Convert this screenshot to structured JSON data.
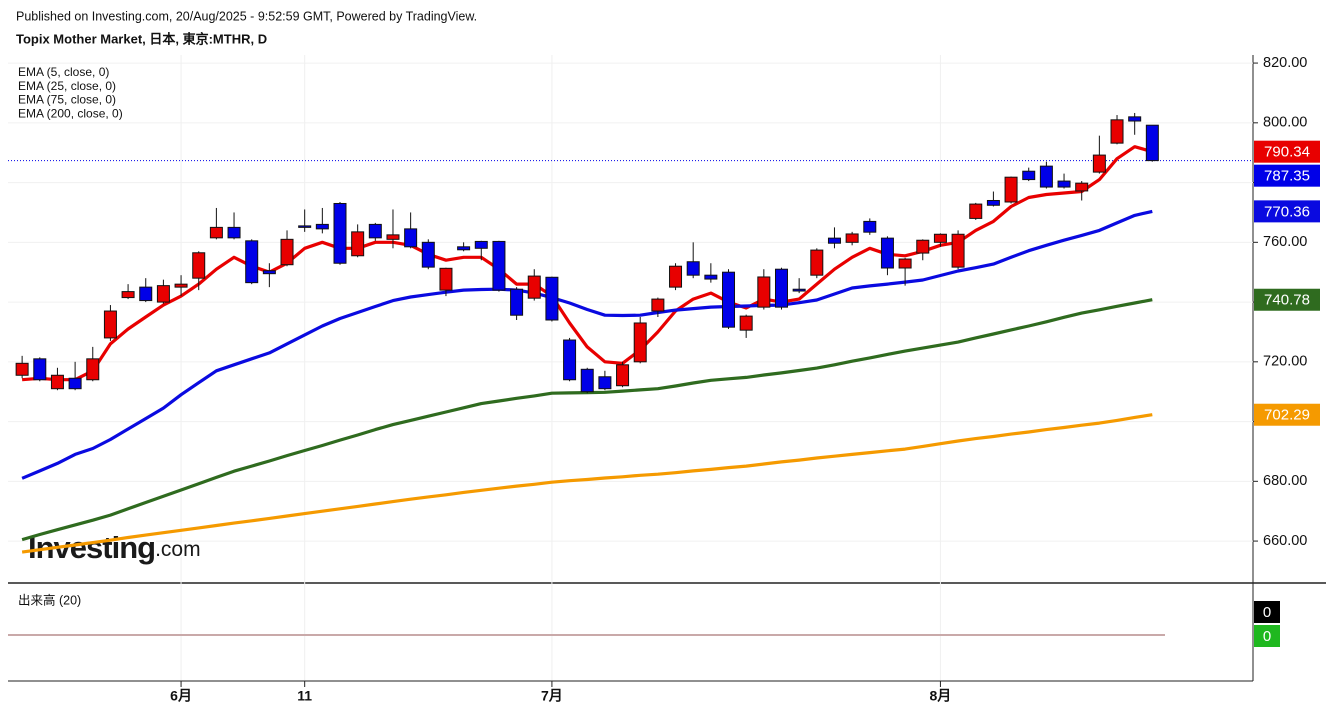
{
  "chart_data": {
    "type": "candlestick",
    "published": "Published on Investing.com, 20/Aug/2025 - 9:52:59 GMT, Powered by TradingView.",
    "title": "Topix Mother Market, 日本, 東京:MTHR, D",
    "watermark": {
      "brand": "Investing",
      "suffix": ".com"
    },
    "categories": [
      null,
      null,
      null,
      null,
      null,
      null,
      null,
      null,
      null,
      "6月",
      null,
      null,
      null,
      null,
      null,
      null,
      "11",
      null,
      null,
      null,
      null,
      null,
      null,
      null,
      null,
      null,
      null,
      null,
      null,
      null,
      "7月",
      null,
      null,
      null,
      null,
      null,
      null,
      null,
      null,
      null,
      null,
      null,
      null,
      null,
      null,
      null,
      null,
      null,
      null,
      null,
      null,
      null,
      "8月",
      null,
      null,
      null,
      null,
      null,
      null,
      null,
      null,
      null,
      null,
      null,
      null
    ],
    "xlim": [
      -0.8,
      69.7
    ],
    "open": [
      715.5,
      721,
      711,
      714.5,
      714,
      728,
      741.5,
      745,
      740,
      745,
      748,
      761.5,
      765,
      760.5,
      750.5,
      752.5,
      765.5,
      766,
      773,
      755.5,
      766,
      761,
      764.5,
      760,
      744,
      758.5,
      760.3,
      760.3,
      744.3,
      741.3,
      748.3,
      727.3,
      717.5,
      715,
      712,
      720,
      737,
      745,
      753.5,
      749,
      750,
      730.6,
      738.3,
      751,
      744.3,
      749,
      761.4,
      760,
      767,
      761.4,
      751.4,
      756.4,
      760,
      751.7,
      768,
      774,
      773.5,
      783.8,
      785.5,
      780.5,
      777.2,
      783.5,
      793.2,
      802,
      799.2
    ],
    "high": [
      722,
      721.5,
      718,
      720,
      725,
      739,
      746,
      748,
      747.5,
      749,
      757,
      771.5,
      770,
      761,
      753,
      764,
      771,
      771.5,
      773.5,
      766,
      766.5,
      771,
      770,
      761,
      751.5,
      760,
      760.5,
      760.5,
      745,
      751,
      748.5,
      728,
      718,
      717,
      720,
      735,
      741.5,
      753,
      760,
      753,
      751,
      735.8,
      751,
      751.5,
      748,
      758,
      765,
      763.5,
      768,
      762,
      754.8,
      761,
      763,
      764,
      773.2,
      777,
      782,
      785,
      787,
      783,
      780.5,
      795.7,
      802.6,
      803.3,
      799.2
    ],
    "low": [
      714.5,
      713.5,
      710.5,
      710.5,
      713.5,
      727,
      741,
      740,
      739.5,
      742,
      744,
      761,
      761,
      746,
      745,
      752,
      763.5,
      763,
      752.5,
      755,
      760.5,
      758,
      758,
      751,
      742,
      757,
      754,
      743.5,
      734,
      740.5,
      733.5,
      713.5,
      709.5,
      710.5,
      711.5,
      719.5,
      735,
      744,
      748,
      746.5,
      731,
      728,
      737.5,
      737.5,
      743,
      748,
      758,
      759,
      762.5,
      749,
      745.5,
      754,
      758.5,
      751,
      767.5,
      772,
      773,
      780.5,
      778,
      778,
      774,
      783,
      792.8,
      796,
      787
    ],
    "close": [
      719.5,
      714,
      715.5,
      711,
      721,
      737,
      743.5,
      740.5,
      745.5,
      746,
      756.5,
      765,
      761.5,
      746.5,
      749.5,
      761,
      765,
      764.5,
      753,
      763.5,
      761.5,
      762.5,
      758.5,
      751.7,
      751.3,
      757.5,
      758,
      744,
      735.6,
      748.7,
      734,
      714,
      710,
      711,
      719,
      733,
      741,
      752,
      749,
      747.7,
      731.6,
      735.3,
      748.4,
      738.3,
      743.7,
      757.4,
      759.7,
      762.8,
      763.4,
      751.4,
      754.4,
      760.7,
      762.7,
      762.7,
      772.8,
      772.4,
      781.8,
      781,
      778.5,
      778.5,
      779.8,
      789.2,
      801,
      800.6,
      787.35
    ],
    "up_color": "#e80000",
    "down_color": "#0000e8",
    "series": [
      {
        "name": "EMA (5, close, 0)",
        "color": "#e80000",
        "values": [
          714,
          714.5,
          714,
          714,
          717,
          726,
          731,
          735,
          739,
          742,
          746,
          751,
          755,
          752,
          750,
          753,
          758,
          760,
          758,
          758,
          760,
          760,
          759,
          756,
          754,
          755,
          755,
          751,
          746,
          746,
          742,
          733,
          725,
          720,
          719.5,
          724,
          730,
          737,
          741,
          743,
          740,
          738,
          741,
          740,
          741,
          746,
          751,
          755,
          758,
          756,
          755.5,
          757,
          759,
          760,
          764,
          767,
          772,
          775,
          776,
          776.5,
          777,
          781,
          788,
          792,
          790.34
        ]
      },
      {
        "name": "EMA (25, close, 0)",
        "color": "#0a0ae0",
        "values": [
          681,
          683.5,
          686,
          689,
          691,
          694,
          697.5,
          701,
          704.5,
          709,
          713,
          717,
          719,
          721,
          723,
          726,
          729,
          732,
          734.5,
          736.5,
          738.5,
          740.5,
          741.7,
          742.5,
          743.3,
          744,
          744.2,
          744.3,
          744,
          743,
          741.5,
          739.7,
          737.5,
          735.6,
          735.5,
          735.6,
          736.5,
          737.3,
          737.8,
          738.3,
          738.5,
          738.7,
          738.9,
          739,
          739.8,
          740.7,
          742.7,
          744.7,
          745.4,
          746,
          746.7,
          747.4,
          748.9,
          750.4,
          751.5,
          752.7,
          755,
          757.2,
          759,
          760.7,
          762.3,
          764,
          766.5,
          769,
          770.36
        ]
      },
      {
        "name": "EMA (75, close, 0)",
        "color": "#2f6b1f",
        "values": [
          660.5,
          662.2,
          663.8,
          665.4,
          667,
          668.7,
          670.8,
          672.9,
          675,
          677.1,
          679.2,
          681.3,
          683.4,
          685.1,
          686.8,
          688.6,
          690.3,
          692,
          693.8,
          695.5,
          697.3,
          699,
          700.4,
          701.8,
          703.2,
          704.6,
          706,
          706.9,
          707.8,
          708.6,
          709.5,
          709.6,
          709.7,
          709.8,
          710.2,
          710.6,
          711,
          711.9,
          712.9,
          713.8,
          714.3,
          714.8,
          715.6,
          716.3,
          717.1,
          717.9,
          719,
          720.2,
          721.3,
          722.5,
          723.6,
          724.6,
          725.6,
          726.6,
          728,
          729.3,
          730.7,
          732,
          733.4,
          734.9,
          736.3,
          737.4,
          738.6,
          739.7,
          740.78
        ]
      },
      {
        "name": "EMA (200, close, 0)",
        "color": "#f59a00",
        "values": [
          656.3,
          657.1,
          657.9,
          658.7,
          659.5,
          660.3,
          661.2,
          662,
          662.8,
          663.6,
          664.4,
          665.2,
          666,
          666.8,
          667.6,
          668.4,
          669.2,
          670,
          670.8,
          671.6,
          672.4,
          673.2,
          674,
          674.8,
          675.5,
          676.3,
          677,
          677.7,
          678.4,
          679,
          679.7,
          680.2,
          680.6,
          681.1,
          681.5,
          682,
          682.4,
          682.9,
          683.5,
          684,
          684.6,
          685.1,
          685.8,
          686.5,
          687.1,
          687.8,
          688.4,
          689,
          689.6,
          690.2,
          690.8,
          691.7,
          692.6,
          693.5,
          694.3,
          695,
          695.8,
          696.5,
          697.3,
          698,
          698.8,
          699.5,
          700.4,
          701.4,
          702.29
        ]
      }
    ],
    "ylim": [
      646.3,
      822.7
    ],
    "yticks": [
      {
        "value": 660,
        "label": "660.00"
      },
      {
        "value": 680,
        "label": "680.00"
      },
      {
        "value": 700,
        "label": "700.00"
      },
      {
        "value": 720,
        "label": "720.00"
      },
      {
        "value": 740,
        "label": "740.00"
      },
      {
        "value": 760,
        "label": "760.00"
      },
      {
        "value": 780,
        "label": "780.00"
      },
      {
        "value": 800,
        "label": "800.00"
      },
      {
        "value": 820,
        "label": "820.00"
      }
    ],
    "grid": true,
    "last_price_color": "#0000e8",
    "volume": {
      "name": "出来高 (20)",
      "values": [
        0,
        0
      ],
      "colors": [
        "#000000",
        "#1fb81f"
      ]
    }
  }
}
